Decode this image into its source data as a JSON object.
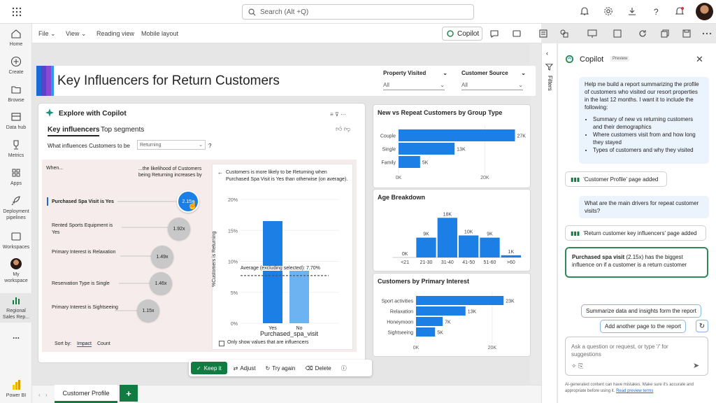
{
  "topbar": {
    "search_placeholder": "Search (Alt +Q)",
    "icons": [
      "waffle-icon",
      "bell-icon",
      "gear-icon",
      "download-icon",
      "help-icon",
      "feedback-icon",
      "avatar"
    ]
  },
  "leftnav": [
    {
      "label": "Home",
      "icon": "home-icon"
    },
    {
      "label": "Create",
      "icon": "plus-icon"
    },
    {
      "label": "Browse",
      "icon": "folder-icon"
    },
    {
      "label": "Data hub",
      "icon": "database-icon"
    },
    {
      "label": "Metrics",
      "icon": "trophy-icon"
    },
    {
      "label": "Apps",
      "icon": "apps-icon"
    },
    {
      "label": "Deployment pipelines",
      "icon": "rocket-icon"
    },
    {
      "label": "Workspaces",
      "icon": "workspaces-icon"
    },
    {
      "label": "My workspace",
      "icon": "avatar"
    },
    {
      "label": "Regional Sales Rep...",
      "icon": "report-icon"
    },
    {
      "label": "...",
      "icon": "more-icon"
    },
    {
      "label": "Power BI",
      "icon": "powerbi-icon"
    }
  ],
  "toolbar": {
    "file": "File",
    "view": "View",
    "reading_view": "Reading view",
    "mobile_layout": "Mobile layout",
    "copilot": "Copilot"
  },
  "report": {
    "title": "Key Influencers for Return Customers",
    "accent_colors": [
      "#1a6bd6",
      "#5b43c9",
      "#8a48d6",
      "#2a9be8"
    ],
    "slicers": [
      {
        "label": "Property Visited",
        "value": "All"
      },
      {
        "label": "Customer Source",
        "value": "All"
      }
    ]
  },
  "explore": {
    "title": "Explore with Copilot",
    "tabs": [
      "Key influencers",
      "Top segments"
    ],
    "question_label": "What influences Customers to be",
    "question_value": "Returning",
    "question_mark": "?",
    "col_when": "When...",
    "col_likelihood": "...the likelihood of Customers being Returning increases by",
    "factors": [
      {
        "label": "Purchased Spa Visit is Yes",
        "value": "2.15x"
      },
      {
        "label": "Rented Sports Equipment is Yes",
        "value": "1.92x"
      },
      {
        "label": "Primary Interest is Relaxation",
        "value": "1.49x"
      },
      {
        "label": "Reservation Type is Single",
        "value": "1.46x"
      },
      {
        "label": "Primary Interest is Sightseeing",
        "value": "1.15x"
      }
    ],
    "sort_by": "Sort by:",
    "sort_impact": "Impact",
    "sort_count": "Count",
    "detail": {
      "text": "Customers is more likely to be Returning when Purchased Spa Visit is Yes than otherwise (on average).",
      "ylabel": "%Customers is Returning",
      "xlabel": "Purchased_spa_visit",
      "yticks": [
        "20%",
        "15%",
        "10%",
        "5%",
        "0%"
      ],
      "average_label": "Average (excluding selected): 7.70%",
      "only_show": "Only show values that are influencers"
    }
  },
  "chart_data": [
    {
      "type": "bar",
      "orientation": "horizontal",
      "title": "",
      "xlabel": "",
      "ylabel": "%Customers is Returning",
      "categories": [
        "Yes",
        "No"
      ],
      "values": [
        16.5,
        8.5
      ],
      "ylim": [
        0,
        20
      ],
      "reference_line": 7.7
    },
    {
      "type": "bar",
      "orientation": "horizontal",
      "title": "New vs Repeat Customers by Group Type",
      "categories": [
        "Couple",
        "Single",
        "Family"
      ],
      "values": [
        27000,
        13000,
        5000
      ],
      "data_labels": [
        "27K",
        "13K",
        "5K"
      ],
      "xticks": [
        "0K",
        "20K"
      ],
      "xlim": [
        0,
        30000
      ]
    },
    {
      "type": "bar",
      "title": "Age Breakdown",
      "categories": [
        "<21",
        "21-30",
        "31-40",
        "41-50",
        "51-60",
        ">60"
      ],
      "values": [
        0,
        9000,
        18000,
        10000,
        9000,
        1000
      ],
      "data_labels": [
        "0K",
        "9K",
        "18K",
        "10K",
        "9K",
        "1K"
      ],
      "ylim": [
        0,
        20000
      ]
    },
    {
      "type": "bar",
      "orientation": "horizontal",
      "title": "Customers by Primary Interest",
      "categories": [
        "Sport activities",
        "Relaxation",
        "Honeymoon",
        "Sightseeing"
      ],
      "values": [
        23000,
        13000,
        7000,
        5000
      ],
      "data_labels": [
        "23K",
        "13K",
        "7K",
        "5K"
      ],
      "xticks": [
        "0K",
        "20K"
      ],
      "xlim": [
        0,
        27000
      ]
    }
  ],
  "actions": {
    "keep": "Keep it",
    "adjust": "Adjust",
    "try_again": "Try again",
    "delete": "Delete"
  },
  "filters_label": "Filters",
  "copilot_panel": {
    "title": "Copilot",
    "badge": "Preview",
    "msg1_intro": "Help me build a report summarizing the profile of customers who visited our resort properties in the last 12 months. I want it to include the following:",
    "msg1_bullets": [
      "Summary of new vs returning customers and their demographics",
      "Where customers visit from and how long they stayed",
      "Types of customers and why they visited"
    ],
    "sys1": "'Customer Profile' page added",
    "msg2": "What are the main drivers for repeat customer visits?",
    "sys2": "'Return customer key influencers' page added",
    "answer_bold": "Purchased spa visit",
    "answer_rest": " (2.15x) has the biggest influence on if a customer is a return customer",
    "suggestion1": "Summarize data and insights form the report",
    "suggestion2": "Add another page to the report",
    "input_placeholder": "Ask a question or request, or type '/' for suggestions",
    "disclaimer": "AI-generated content can have mistakes. Make sure it's accurate and appropriate before using it.",
    "disclaimer_link": "Read preview terms"
  },
  "tabs": {
    "page": "Customer Profile",
    "add": "+"
  }
}
